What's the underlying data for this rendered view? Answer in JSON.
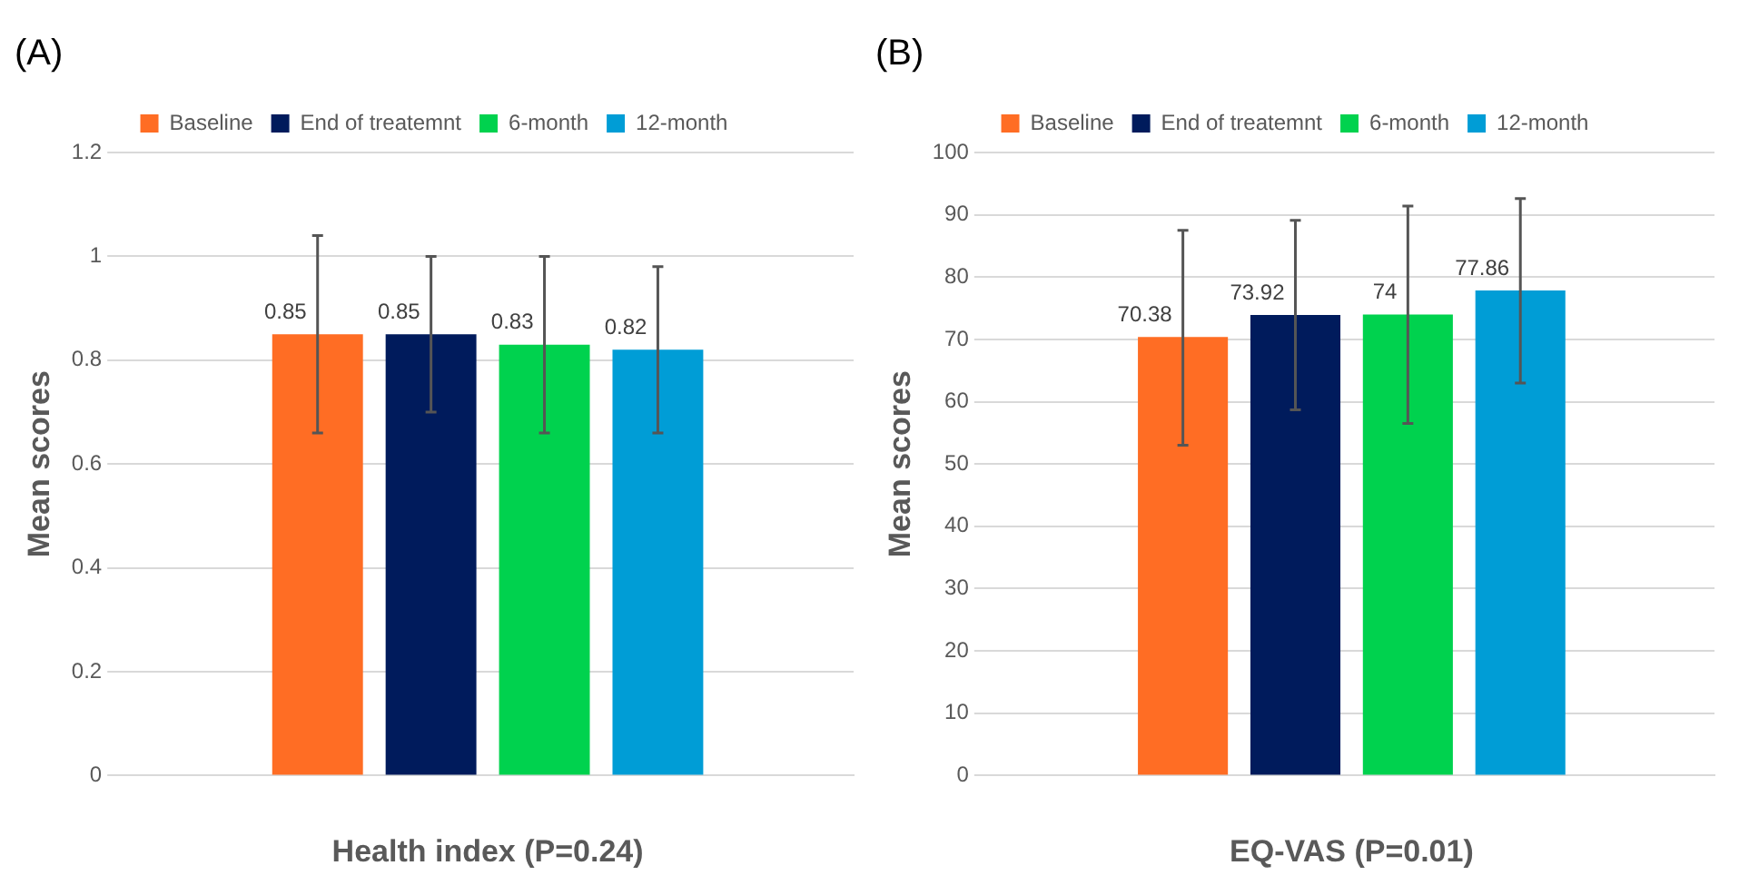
{
  "chart_data": [
    {
      "type": "bar",
      "title": "(A)",
      "xlabel": "Health index (P=0.24)",
      "ylabel": "Mean scores",
      "categories": [
        null
      ],
      "series": [
        {
          "name": "Baseline",
          "color": "#ff6d24",
          "values": [
            0.85
          ],
          "errors": [
            [
              0.66,
              1.04
            ]
          ]
        },
        {
          "name": "End of treatemnt",
          "color": "#001b5c",
          "values": [
            0.85
          ],
          "errors": [
            [
              0.7,
              1.0
            ]
          ]
        },
        {
          "name": "6-month",
          "color": "#00d24e",
          "values": [
            0.83
          ],
          "errors": [
            [
              0.66,
              1.0
            ]
          ]
        },
        {
          "name": "12-month",
          "color": "#009dd6",
          "values": [
            0.82
          ],
          "errors": [
            [
              0.66,
              0.98
            ]
          ]
        }
      ],
      "ylim": [
        0,
        1.2
      ],
      "yticks": [
        0,
        0.2,
        0.4,
        0.6,
        0.8,
        1,
        1.2
      ],
      "grid": "y",
      "legend": "top",
      "data_labels": true
    },
    {
      "type": "bar",
      "title": "(B)",
      "xlabel": "EQ-VAS (P=0.01)",
      "ylabel": "Mean scores",
      "categories": [
        null
      ],
      "series": [
        {
          "name": "Baseline",
          "color": "#ff6d24",
          "values": [
            70.38
          ],
          "errors": [
            [
              53,
              87.5
            ]
          ]
        },
        {
          "name": "End of treatemnt",
          "color": "#001b5c",
          "values": [
            73.92
          ],
          "errors": [
            [
              58.7,
              89.1
            ]
          ]
        },
        {
          "name": "6-month",
          "color": "#00d24e",
          "values": [
            74
          ],
          "errors": [
            [
              56.5,
              91.4
            ]
          ]
        },
        {
          "name": "12-month",
          "color": "#009dd6",
          "values": [
            77.86
          ],
          "errors": [
            [
              63,
              92.6
            ]
          ]
        }
      ],
      "ylim": [
        0,
        100
      ],
      "yticks": [
        0,
        10,
        20,
        30,
        40,
        50,
        60,
        70,
        80,
        90,
        100
      ],
      "grid": "y",
      "legend": "top",
      "data_labels": true
    }
  ]
}
